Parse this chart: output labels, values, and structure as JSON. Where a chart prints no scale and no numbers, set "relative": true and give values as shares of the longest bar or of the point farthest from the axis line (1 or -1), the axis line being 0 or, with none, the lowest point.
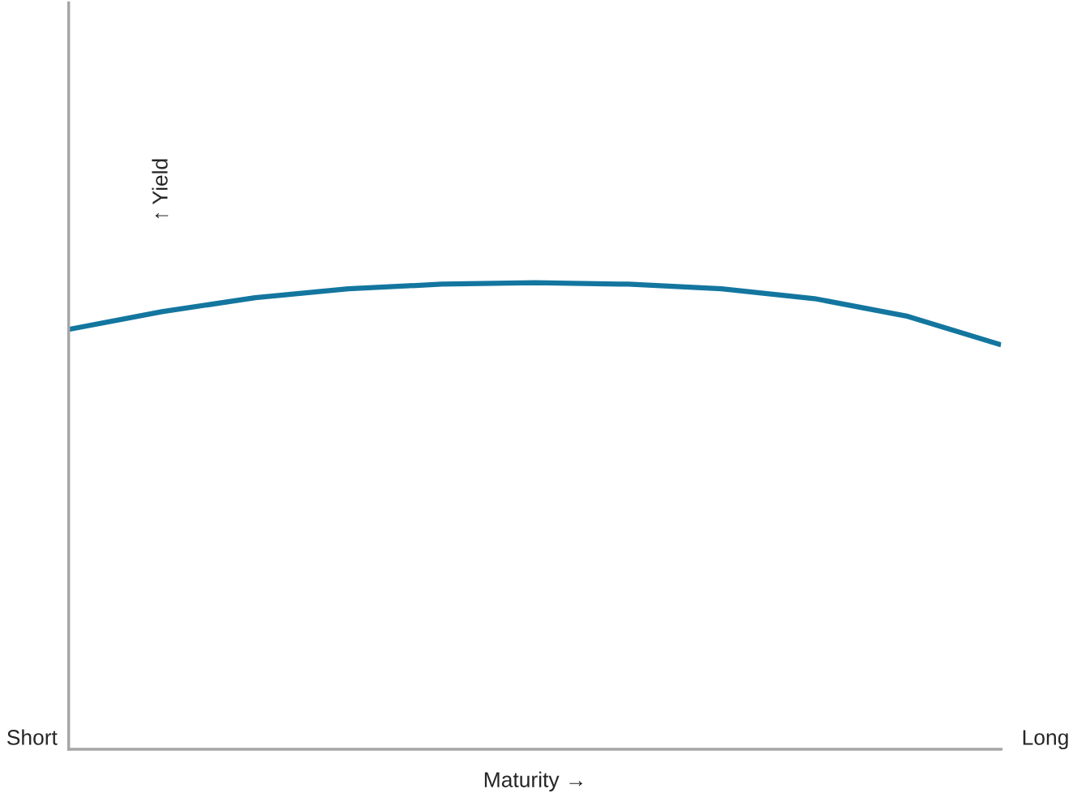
{
  "chart_data": {
    "type": "line",
    "relative": true,
    "xlabel": "Maturity →",
    "ylabel": "↑ Yield",
    "categories": [
      null,
      null,
      null,
      null,
      null,
      null,
      null,
      null,
      null,
      null,
      null
    ],
    "series": [
      {
        "color": "#13769f",
        "values": [
          0.9,
          0.938,
          0.968,
          0.987,
          0.997,
          1,
          0.997,
          0.987,
          0.966,
          0.928,
          0.867
        ]
      }
    ],
    "annotations": [
      "Short",
      "Long"
    ],
    "grid": false,
    "legend": false,
    "marker": "none",
    "line_style": "solid"
  }
}
